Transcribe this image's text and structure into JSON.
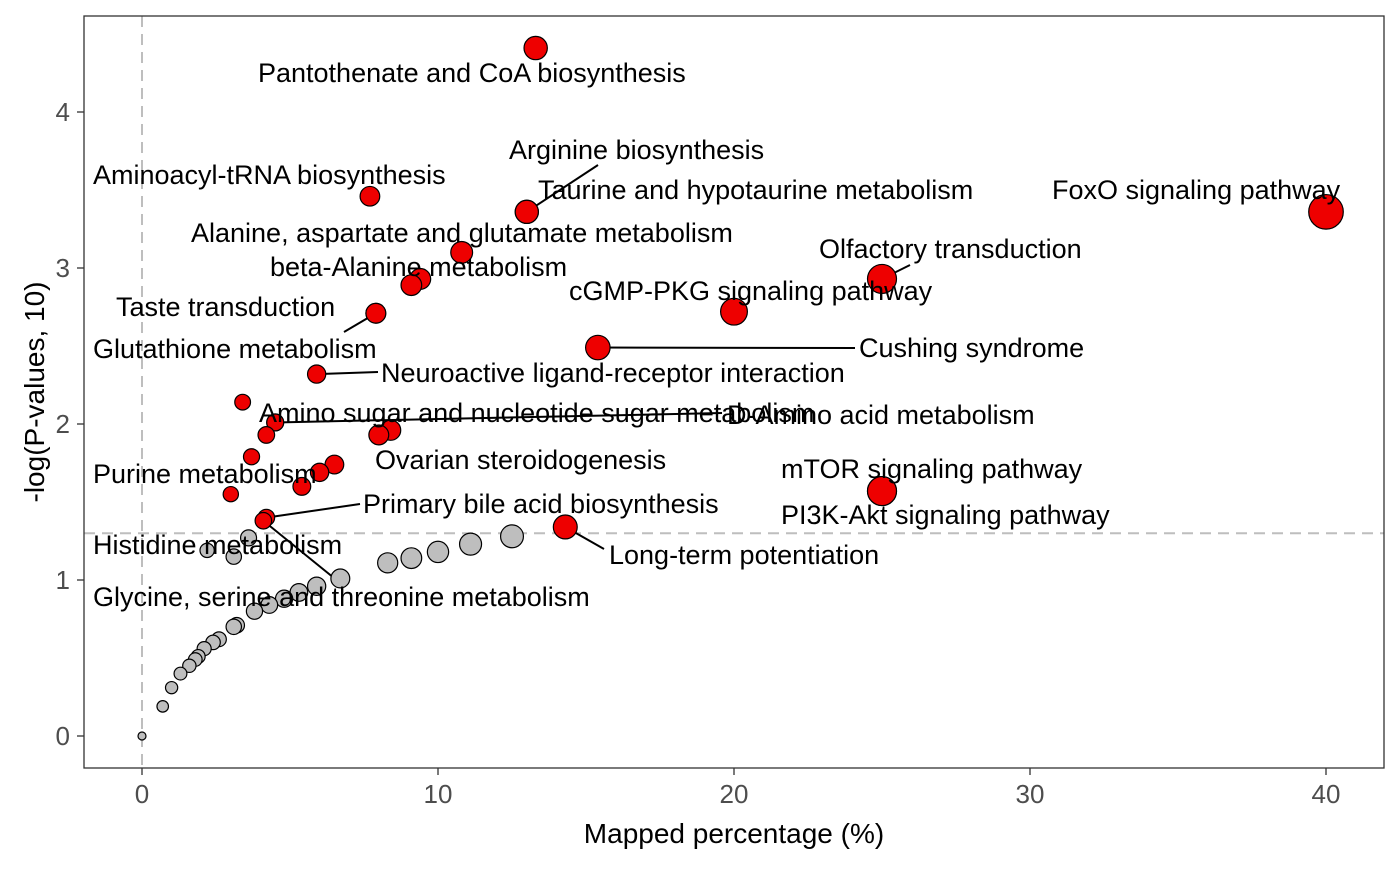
{
  "chart_data": {
    "type": "scatter",
    "title": "",
    "xlabel": "Mapped percentage (%)",
    "ylabel": "-log(P-values, 10)",
    "xlim": [
      -2,
      42
    ],
    "ylim": [
      -0.2,
      4.6
    ],
    "x_ticks": [
      0,
      10,
      20,
      30,
      40
    ],
    "y_ticks": [
      0,
      1,
      2,
      3,
      4
    ],
    "grid": false,
    "legend": "none",
    "reference_lines": {
      "vertical_x": 0,
      "horizontal_y": 1.3
    },
    "colors": {
      "significant": "#ee0000",
      "non_significant": "#bebebe",
      "outline": "#000000",
      "reference": "#bebebe"
    },
    "significant_points": [
      {
        "x": 13.3,
        "y": 4.41,
        "label": "Pantothenate and CoA biosynthesis"
      },
      {
        "x": 40.0,
        "y": 3.36,
        "label": "FoxO signaling pathway"
      },
      {
        "x": 7.7,
        "y": 3.46,
        "label": "Aminoacyl-tRNA biosynthesis"
      },
      {
        "x": 13.0,
        "y": 3.36,
        "label": "Arginine biosynthesis"
      },
      {
        "x": 13.0,
        "y": 3.36,
        "label": "Taurine and hypotaurine metabolism"
      },
      {
        "x": 10.8,
        "y": 3.1,
        "label": "Alanine, aspartate and glutamate metabolism"
      },
      {
        "x": 25.0,
        "y": 2.93,
        "label": "Olfactory transduction"
      },
      {
        "x": 9.4,
        "y": 2.93,
        "label": "beta-Alanine metabolism"
      },
      {
        "x": 9.1,
        "y": 2.89,
        "label": ""
      },
      {
        "x": 20.0,
        "y": 2.72,
        "label": "cGMP-PKG signaling pathway"
      },
      {
        "x": 7.9,
        "y": 2.71,
        "label": "Taste transduction"
      },
      {
        "x": 7.9,
        "y": 2.71,
        "label": "Glutathione metabolism"
      },
      {
        "x": 15.4,
        "y": 2.49,
        "label": "Cushing syndrome"
      },
      {
        "x": 5.9,
        "y": 2.32,
        "label": "Neuroactive ligand-receptor interaction"
      },
      {
        "x": 3.4,
        "y": 2.14,
        "label": ""
      },
      {
        "x": 4.5,
        "y": 2.01,
        "label": "Amino sugar and nucleotide sugar metabolism"
      },
      {
        "x": 4.5,
        "y": 2.01,
        "label": "D-Amino acid metabolism"
      },
      {
        "x": 8.4,
        "y": 1.96,
        "label": ""
      },
      {
        "x": 8.0,
        "y": 1.93,
        "label": "Ovarian steroidogenesis"
      },
      {
        "x": 4.2,
        "y": 1.93,
        "label": ""
      },
      {
        "x": 3.7,
        "y": 1.79,
        "label": ""
      },
      {
        "x": 6.5,
        "y": 1.74,
        "label": ""
      },
      {
        "x": 6.0,
        "y": 1.69,
        "label": ""
      },
      {
        "x": 25.0,
        "y": 1.57,
        "label": "mTOR signaling pathway"
      },
      {
        "x": 25.0,
        "y": 1.57,
        "label": "PI3K-Akt signaling pathway"
      },
      {
        "x": 5.4,
        "y": 1.6,
        "label": "Purine metabolism"
      },
      {
        "x": 3.0,
        "y": 1.55,
        "label": ""
      },
      {
        "x": 4.2,
        "y": 1.4,
        "label": "Primary bile acid biosynthesis"
      },
      {
        "x": 4.1,
        "y": 1.38,
        "label": "Glycine, serine and threonine metabolism"
      },
      {
        "x": 14.3,
        "y": 1.34,
        "label": "Long-term potentiation"
      }
    ],
    "non_significant_points": [
      {
        "x": 12.5,
        "y": 1.28,
        "label": ""
      },
      {
        "x": 11.1,
        "y": 1.23,
        "label": ""
      },
      {
        "x": 10.0,
        "y": 1.18,
        "label": ""
      },
      {
        "x": 9.1,
        "y": 1.14,
        "label": ""
      },
      {
        "x": 8.3,
        "y": 1.11,
        "label": ""
      },
      {
        "x": 3.6,
        "y": 1.27,
        "label": ""
      },
      {
        "x": 3.1,
        "y": 1.15,
        "label": ""
      },
      {
        "x": 2.2,
        "y": 1.19,
        "label": "Histidine metabolism"
      },
      {
        "x": 6.7,
        "y": 1.01,
        "label": ""
      },
      {
        "x": 5.9,
        "y": 0.96,
        "label": ""
      },
      {
        "x": 5.3,
        "y": 0.92,
        "label": ""
      },
      {
        "x": 4.8,
        "y": 0.88,
        "label": ""
      },
      {
        "x": 4.3,
        "y": 0.84,
        "label": ""
      },
      {
        "x": 3.8,
        "y": 0.8,
        "label": ""
      },
      {
        "x": 3.2,
        "y": 0.71,
        "label": ""
      },
      {
        "x": 3.1,
        "y": 0.7,
        "label": ""
      },
      {
        "x": 2.6,
        "y": 0.62,
        "label": ""
      },
      {
        "x": 2.4,
        "y": 0.6,
        "label": ""
      },
      {
        "x": 2.1,
        "y": 0.56,
        "label": ""
      },
      {
        "x": 1.9,
        "y": 0.51,
        "label": ""
      },
      {
        "x": 1.8,
        "y": 0.49,
        "label": ""
      },
      {
        "x": 1.6,
        "y": 0.45,
        "label": ""
      },
      {
        "x": 1.3,
        "y": 0.4,
        "label": ""
      },
      {
        "x": 1.0,
        "y": 0.31,
        "label": ""
      },
      {
        "x": 0.7,
        "y": 0.19,
        "label": ""
      },
      {
        "x": 0.0,
        "y": 0.0,
        "label": ""
      }
    ]
  }
}
